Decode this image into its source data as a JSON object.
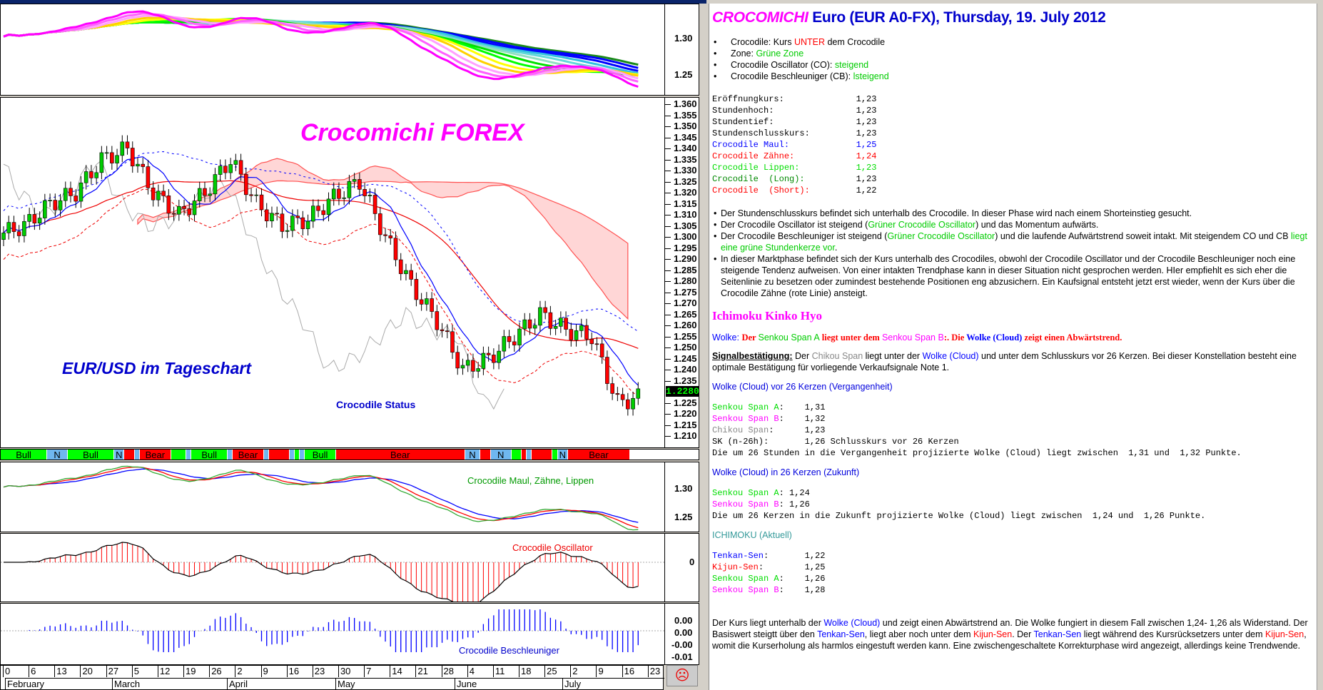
{
  "colors": {
    "bull": "#00ff00",
    "bear": "#ff0000",
    "neutral": "#6fb7f0",
    "maul": "#0000ff",
    "zaehne": "#ff0000",
    "lippen": "#009900"
  },
  "chart_data": [
    {
      "type": "candlestick",
      "title": "Crocomichi FOREX",
      "subtitle": "EUR/USD im Tageschart",
      "ylim": [
        1.205,
        1.362
      ],
      "yticks": [
        "1.360",
        "1.355",
        "1.350",
        "1.345",
        "1.340",
        "1.335",
        "1.330",
        "1.325",
        "1.320",
        "1.315",
        "1.310",
        "1.305",
        "1.300",
        "1.295",
        "1.290",
        "1.285",
        "1.280",
        "1.275",
        "1.270",
        "1.265",
        "1.260",
        "1.255",
        "1.250",
        "1.245",
        "1.240",
        "1.235",
        "1.225",
        "1.220",
        "1.215",
        "1.210"
      ],
      "last_price": "1.2280",
      "x": [
        "2012-01-30",
        "2012-02-06",
        "2012-02-13",
        "2012-02-20",
        "2012-02-27",
        "2012-03-05",
        "2012-03-12",
        "2012-03-19",
        "2012-03-26",
        "2012-04-02",
        "2012-04-09",
        "2012-04-16",
        "2012-04-23",
        "2012-04-30",
        "2012-05-07",
        "2012-05-14",
        "2012-05-21",
        "2012-05-28",
        "2012-06-04",
        "2012-06-11",
        "2012-06-18",
        "2012-06-25",
        "2012-07-02",
        "2012-07-09",
        "2012-07-16"
      ],
      "close": [
        1.305,
        1.315,
        1.32,
        1.335,
        1.34,
        1.32,
        1.31,
        1.32,
        1.335,
        1.315,
        1.305,
        1.308,
        1.318,
        1.325,
        1.3,
        1.278,
        1.262,
        1.24,
        1.245,
        1.255,
        1.265,
        1.258,
        1.255,
        1.225,
        1.228
      ]
    },
    {
      "type": "area",
      "name": "rainbow",
      "yticks": [
        "1.30",
        "1.25"
      ]
    },
    {
      "type": "line",
      "label": "Crocodile Maul, Zähne, Lippen",
      "yticks": [
        "1.30",
        "1.25"
      ]
    },
    {
      "type": "bar",
      "label": "Crocodile Oscillator",
      "yticks": [
        "0"
      ]
    },
    {
      "type": "bar",
      "label": "Crocodile Beschleuniger",
      "yticks": [
        "0.00",
        "0.00",
        "-0.00",
        "-0.01"
      ]
    }
  ],
  "status_label": "Crocodile Status",
  "status": [
    {
      "s": "bull",
      "t": "Bull",
      "days": 9
    },
    {
      "s": "n",
      "t": "N",
      "days": 4
    },
    {
      "s": "bull",
      "t": "Bull",
      "days": 9
    },
    {
      "s": "n",
      "t": "N",
      "days": 2
    },
    {
      "s": "bear",
      "t": "",
      "days": 2
    },
    {
      "s": "n",
      "t": "",
      "days": 1
    },
    {
      "s": "bear",
      "t": "Bear",
      "days": 6
    },
    {
      "s": "bull",
      "t": "",
      "days": 3
    },
    {
      "s": "n",
      "t": "",
      "days": 1
    },
    {
      "s": "bull",
      "t": "Bull",
      "days": 7
    },
    {
      "s": "n",
      "t": "",
      "days": 1
    },
    {
      "s": "bear",
      "t": "Bear",
      "days": 6
    },
    {
      "s": "n",
      "t": "",
      "days": 1
    },
    {
      "s": "bear",
      "t": "",
      "days": 4
    },
    {
      "s": "n",
      "t": "",
      "days": 1
    },
    {
      "s": "bull",
      "t": "",
      "days": 1
    },
    {
      "s": "n",
      "t": "",
      "days": 1
    },
    {
      "s": "bull",
      "t": "Bull",
      "days": 6
    },
    {
      "s": "bear",
      "t": "Bear",
      "days": 25
    },
    {
      "s": "n",
      "t": "N",
      "days": 3
    },
    {
      "s": "bear",
      "t": "",
      "days": 2
    },
    {
      "s": "n",
      "t": "N",
      "days": 4
    },
    {
      "s": "bull",
      "t": "",
      "days": 2
    },
    {
      "s": "bear",
      "t": "",
      "days": 1
    },
    {
      "s": "n",
      "t": "",
      "days": 1
    },
    {
      "s": "bear",
      "t": "",
      "days": 4
    },
    {
      "s": "bull",
      "t": "",
      "days": 1
    },
    {
      "s": "n",
      "t": "N",
      "days": 2
    },
    {
      "s": "bear",
      "t": "Bear",
      "days": 12
    }
  ],
  "dates": [
    "0",
    "6",
    "13",
    "20",
    "27",
    "5",
    "12",
    "19",
    "26",
    "2",
    "9",
    "16",
    "23",
    "30",
    "7",
    "14",
    "21",
    "28",
    "4",
    "11",
    "18",
    "25",
    "2",
    "9",
    "16",
    "23"
  ],
  "months": [
    "February",
    "March",
    "April",
    "May",
    "June",
    "July"
  ],
  "right": {
    "title_brand": "CROCOMICHI",
    "title_rest": " Euro (EUR A0-FX), Thursday, 19. July 2012",
    "summary": [
      [
        {
          "t": "Crocodile:  Kurs "
        },
        {
          "t": "UNTER",
          "c": "#f00"
        },
        {
          "t": " dem Crocodile"
        }
      ],
      [
        {
          "t": "Zone:  "
        },
        {
          "t": "Grüne Zone",
          "c": "#0c0"
        }
      ],
      [
        {
          "t": "Crocodile Oscillator (CO):  "
        },
        {
          "t": "steigend",
          "c": "#0c0"
        }
      ],
      [
        {
          "t": "Crocodile Beschleuniger (CB):  "
        },
        {
          "t": "lsteigend",
          "c": "#0c0"
        }
      ]
    ],
    "values": [
      {
        "k": "Eröffnungkurs:",
        "v": "1,23",
        "c": "#000"
      },
      {
        "k": "Stundenhoch:",
        "v": "1,23",
        "c": "#000"
      },
      {
        "k": "Stundentief:",
        "v": "1,23",
        "c": "#000"
      },
      {
        "k": "Stundenschlusskurs:",
        "v": "1,23",
        "c": "#000"
      },
      {
        "k": "Crocodile Maul:",
        "v": "1,25",
        "c": "#00f"
      },
      {
        "k": "Crocodile Zähne:",
        "v": "1,24",
        "c": "#f00"
      },
      {
        "k": "Crocodile Lippen:",
        "v": "1,23",
        "c": "#0d0"
      },
      {
        "k": "Crocodile  (Long):",
        "v": "1,23",
        "c": "#080",
        "vc": "#000"
      },
      {
        "k": "Crocodile  (Short):",
        "v": "1,22",
        "c": "#f00",
        "vc": "#000"
      }
    ],
    "analysis": [
      [
        {
          "t": "Der Stundenschlusskurs befindet sich unterhalb des Crocodile. In dieser Phase wird nach einem Shorteinstieg gesucht."
        }
      ],
      [
        {
          "t": "Der Crocodile Oscillator ist steigend ("
        },
        {
          "t": "Grüner Crocodile Oscillator",
          "c": "#0c0"
        },
        {
          "t": ") und das Momentum aufwärts."
        }
      ],
      [
        {
          "t": "Der Crocodile Beschleuniger ist steigend ("
        },
        {
          "t": "Grüner Crocodile Oscillator",
          "c": "#0c0"
        },
        {
          "t": ") und die laufende Aufwärtstrend soweit intakt. Mit steigendem CO und CB "
        },
        {
          "t": "liegt eine grüne Stundenkerze vor",
          "c": "#0c0"
        },
        {
          "t": "."
        }
      ],
      [
        {
          "t": "In dieser Marktphase befindet sich der Kurs unterhalb des Crocodiles, obwohl der Crocodile Oscillator und der Crocodile Beschleuniger noch eine steigende Tendenz aufweisen. Von einer intakten Trendphase kann in dieser Situation nicht gesprochen werden. HIer empfiehlt es sich eher die Seitenlinie zu besetzen oder zumindest bestehende Positionen eng abzusichern. Ein Kaufsignal entsteht jetzt erst wieder, wenn der Kurs über die Crocodile Zähne (rote Linie) ansteigt."
        }
      ]
    ],
    "ichimoku_title": "Ichimoku Kinko Hyo",
    "wolke": [
      {
        "t": "Wolke: ",
        "c": "#00f"
      },
      {
        "t": "Der ",
        "c": "#f00",
        "serif": true
      },
      {
        "t": "Senkou Span A",
        "c": "#0c0"
      },
      {
        "t": " liegt unter dem ",
        "c": "#f00",
        "serif": true
      },
      {
        "t": "Senkou Span B",
        "c": "#f0f"
      },
      {
        "t": ":. Die ",
        "c": "#f00",
        "serif": true
      },
      {
        "t": "Wolke (Cloud)",
        "c": "#00f",
        "serif": true
      },
      {
        "t": " zeigt einen Abwärtstrend.",
        "c": "#f00",
        "serif": true
      }
    ],
    "signal": [
      {
        "t": "Signalbestätigung:",
        "u": true
      },
      {
        "t": " Der "
      },
      {
        "t": "Chikou Span",
        "c": "#888"
      },
      {
        "t": " liegt unter der "
      },
      {
        "t": "Wolke (Cloud)",
        "c": "#00f"
      },
      {
        "t": " und unter dem Schlusskurs vor 26 Kerzen. Bei dieser Konstellation besteht eine optimale Bestätigung für vorliegende Verkaufsignale Note 1."
      }
    ],
    "past_title": "Wolke (Cloud) vor 26 Kerzen (Vergangenheit)",
    "past": [
      {
        "k": "Senkou Span A",
        "c": "#0d0",
        "v": "1,31"
      },
      {
        "k": "Senkou Span B",
        "c": "#f0f",
        "v": "1,32"
      },
      {
        "k": "Chikou Span",
        "c": "#888",
        "v": "1,23"
      },
      {
        "k": "SK (n-26h)",
        "c": "#000",
        "v": "1,26 Schlusskurs vor 26 Kerzen"
      }
    ],
    "past_note": "Die um 26 Stunden in die Vergangenheit projizierte Wolke (Cloud) liegt zwischen  1,31 und  1,32 Punkte.",
    "future_title": "Wolke (Cloud) in 26 Kerzen (Zukunft)",
    "future": [
      {
        "k": "Senkou Span A",
        "c": "#0d0",
        "v": "1,24"
      },
      {
        "k": "Senkou Span B",
        "c": "#f0f",
        "v": "1,26"
      }
    ],
    "future_note": "Die um 26 Kerzen in die Zukunft projizierte Wolke (Cloud) liegt zwischen  1,24 und  1,26 Punkte.",
    "current_title": "ICHIMOKU (Aktuell)",
    "current": [
      {
        "k": "Tenkan-Sen",
        "c": "#00f",
        "v": "1,22"
      },
      {
        "k": "Kijun-Sen",
        "c": "#f00",
        "v": "1,25"
      },
      {
        "k": "Senkou Span A",
        "c": "#0d0",
        "v": "1,26"
      },
      {
        "k": "Senkou Span B",
        "c": "#f0f",
        "v": "1,28"
      }
    ],
    "conclusion": [
      {
        "t": "Der Kurs liegt unterhalb der "
      },
      {
        "t": "Wolke (Cloud)",
        "c": "#00f"
      },
      {
        "t": " und zeigt einen Abwärtstrend an. Die Wolke fungiert in diesem Fall zwischen  1,24-  1,26 als Widerstand. Der Basiswert steigtt über den "
      },
      {
        "t": "Tenkan-Sen",
        "c": "#00f"
      },
      {
        "t": ", liegt aber noch unter dem "
      },
      {
        "t": "Kijun-Sen",
        "c": "#f00"
      },
      {
        "t": ". Der "
      },
      {
        "t": "Tenkan-Sen",
        "c": "#00f"
      },
      {
        "t": " liegt während des Kursrücksetzers unter dem "
      },
      {
        "t": "Kijun-Sen",
        "c": "#f00"
      },
      {
        "t": ", womit die Kurserholung als harmlos eingestuft werden kann. Eine zwischengeschaltete Korrekturphase wird angezeigt, allerdings keine Trendwende."
      }
    ]
  }
}
